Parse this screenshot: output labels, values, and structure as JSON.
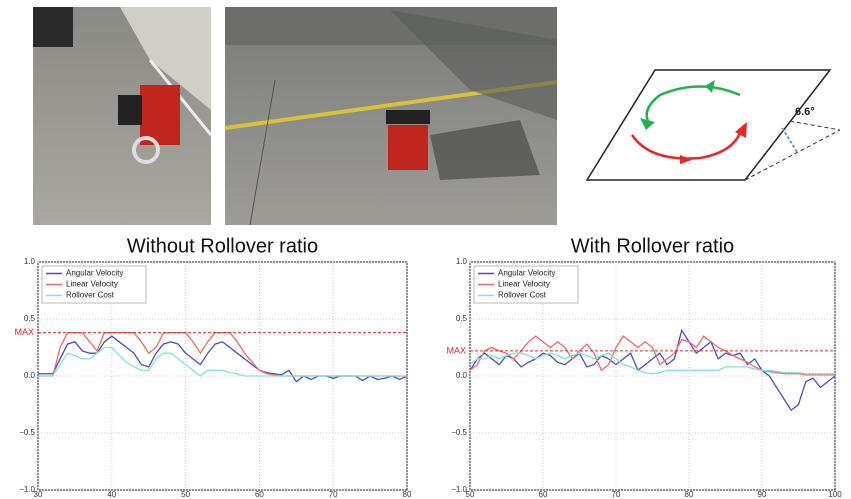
{
  "diagram": {
    "angle_label": "6.6°"
  },
  "chart_data": [
    {
      "type": "line",
      "title": "Without Rollover ratio",
      "x": [
        30,
        31,
        32,
        33,
        34,
        35,
        36,
        37,
        38,
        39,
        40,
        41,
        42,
        43,
        44,
        45,
        46,
        47,
        48,
        49,
        50,
        51,
        52,
        53,
        54,
        55,
        56,
        57,
        58,
        59,
        60,
        61,
        62,
        63,
        64,
        65,
        66,
        67,
        68,
        69,
        70,
        71,
        72,
        73,
        74,
        75,
        76,
        77,
        78,
        79,
        80
      ],
      "series": [
        {
          "name": "Angular Velocity",
          "color": "#4b4bc4",
          "values": [
            0.02,
            0.02,
            0.02,
            0.15,
            0.28,
            0.3,
            0.22,
            0.2,
            0.2,
            0.3,
            0.35,
            0.3,
            0.25,
            0.2,
            0.1,
            0.08,
            0.2,
            0.28,
            0.3,
            0.28,
            0.2,
            0.15,
            0.1,
            0.2,
            0.28,
            0.3,
            0.25,
            0.2,
            0.15,
            0.1,
            0.05,
            0.03,
            0.02,
            0.01,
            0.05,
            -0.05,
            0,
            -0.03,
            0,
            0,
            -0.02,
            0,
            0,
            0,
            -0.04,
            0,
            -0.03,
            -0.02,
            0,
            -0.03,
            0
          ]
        },
        {
          "name": "Linear Velocity",
          "color": "#f06a6a",
          "values": [
            0,
            0,
            0,
            0.25,
            0.38,
            0.38,
            0.38,
            0.3,
            0.22,
            0.38,
            0.38,
            0.38,
            0.38,
            0.38,
            0.3,
            0.2,
            0.25,
            0.38,
            0.38,
            0.38,
            0.38,
            0.3,
            0.2,
            0.3,
            0.38,
            0.38,
            0.38,
            0.3,
            0.2,
            0.12,
            0.05,
            0.02,
            0.01,
            0,
            0,
            0,
            0,
            0,
            0,
            0,
            0,
            0,
            0,
            0,
            0,
            0,
            0,
            0,
            0,
            0,
            0
          ]
        },
        {
          "name": "Rollover Cost",
          "color": "#86e0dc",
          "values": [
            0,
            0,
            0,
            0.1,
            0.2,
            0.18,
            0.15,
            0.15,
            0.2,
            0.25,
            0.25,
            0.18,
            0.12,
            0.08,
            0.05,
            0.05,
            0.15,
            0.2,
            0.2,
            0.15,
            0.1,
            0.05,
            0,
            0.05,
            0.05,
            0.05,
            0.03,
            0.02,
            0,
            0,
            0,
            0,
            0,
            0,
            0,
            0,
            0,
            0,
            0,
            0,
            0,
            0,
            0,
            0,
            0,
            0,
            0,
            0,
            0,
            0,
            0
          ]
        }
      ],
      "hline": {
        "value": 0.38,
        "label": "MAX"
      },
      "xlim": [
        30,
        80
      ],
      "xticks": [
        30,
        40,
        50,
        60,
        70,
        80
      ],
      "ylim": [
        -1,
        1
      ],
      "yticks": [
        {
          "value": -1,
          "label": "−1.0"
        },
        {
          "value": -0.5,
          "label": "−0.5"
        },
        {
          "value": 0,
          "label": "0.0"
        },
        {
          "value": 0.5,
          "label": "0.5"
        },
        {
          "value": 1,
          "label": "1.0"
        }
      ],
      "grid": true,
      "legend": "upper-left"
    },
    {
      "type": "line",
      "title": "With Rollover ratio",
      "x": [
        50,
        51,
        52,
        53,
        54,
        55,
        56,
        57,
        58,
        59,
        60,
        61,
        62,
        63,
        64,
        65,
        66,
        67,
        68,
        69,
        70,
        71,
        72,
        73,
        74,
        75,
        76,
        77,
        78,
        79,
        80,
        81,
        82,
        83,
        84,
        85,
        86,
        87,
        88,
        89,
        90,
        91,
        92,
        93,
        94,
        95,
        96,
        97,
        98,
        99,
        100
      ],
      "series": [
        {
          "name": "Angular Velocity",
          "color": "#4b4bc4",
          "values": [
            0.05,
            0.15,
            0.2,
            0.15,
            0.1,
            0.18,
            0.15,
            0.08,
            0.12,
            0.15,
            0.2,
            0.18,
            0.12,
            0.1,
            0.15,
            0.2,
            0.08,
            0.1,
            0.18,
            0.15,
            0.1,
            0.15,
            0.2,
            0.05,
            0.1,
            0.15,
            0.2,
            0.1,
            0.15,
            0.4,
            0.3,
            0.2,
            0.25,
            0.3,
            0.15,
            0.2,
            0.18,
            0.2,
            0.1,
            0.15,
            0.05,
            0,
            -0.1,
            -0.2,
            -0.3,
            -0.25,
            -0.05,
            -0.02,
            -0.1,
            -0.05,
            0
          ]
        },
        {
          "name": "Linear Velocity",
          "color": "#f06a6a",
          "values": [
            0.05,
            0.1,
            0.22,
            0.25,
            0.22,
            0.2,
            0.15,
            0.22,
            0.3,
            0.35,
            0.3,
            0.25,
            0.3,
            0.25,
            0.15,
            0.22,
            0.28,
            0.2,
            0.05,
            0.1,
            0.25,
            0.35,
            0.3,
            0.25,
            0.3,
            0.25,
            0.1,
            0.15,
            0.2,
            0.32,
            0.3,
            0.25,
            0.35,
            0.3,
            0.25,
            0.22,
            0.18,
            0.15,
            0.12,
            0.08,
            0.05,
            0.04,
            0.03,
            0.02,
            0.02,
            0.02,
            0.01,
            0.01,
            0.01,
            0.01,
            0.01
          ]
        },
        {
          "name": "Rollover Cost",
          "color": "#86e0dc",
          "values": [
            0.1,
            0.15,
            0.15,
            0.18,
            0.15,
            0.18,
            0.2,
            0.2,
            0.18,
            0.15,
            0.18,
            0.2,
            0.18,
            0.15,
            0.18,
            0.2,
            0.18,
            0.15,
            0.18,
            0.2,
            0.15,
            0.1,
            0.08,
            0.05,
            0.03,
            0.02,
            0.03,
            0.05,
            0.05,
            0.05,
            0.05,
            0.05,
            0.05,
            0.05,
            0.05,
            0.08,
            0.08,
            0.08,
            0.08,
            0.06,
            0.05,
            0.05,
            0.04,
            0.03,
            0.03,
            0.03,
            0.02,
            0.02,
            0.02,
            0.02,
            0.02
          ]
        }
      ],
      "hline": {
        "value": 0.22,
        "label": "MAX"
      },
      "xlim": [
        50,
        100
      ],
      "xticks": [
        50,
        60,
        70,
        80,
        90,
        100
      ],
      "ylim": [
        -1,
        1
      ],
      "yticks": [
        {
          "value": -1,
          "label": "−1.0"
        },
        {
          "value": -0.5,
          "label": "−0.5"
        },
        {
          "value": 0,
          "label": "0.0"
        },
        {
          "value": 0.5,
          "label": "0.5"
        },
        {
          "value": 1,
          "label": "1.0"
        }
      ],
      "grid": true,
      "legend": "upper-left"
    }
  ]
}
